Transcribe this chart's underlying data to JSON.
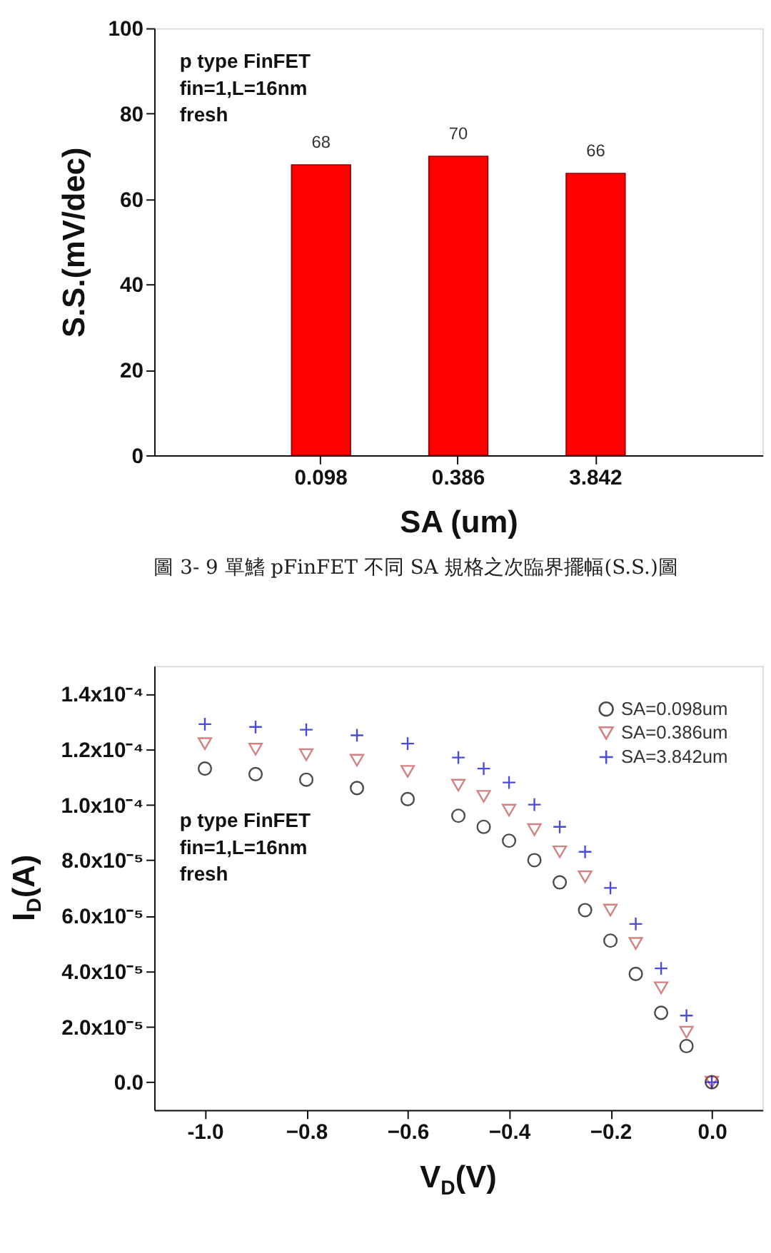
{
  "chart_data": [
    {
      "type": "bar",
      "categories": [
        "0.098",
        "0.386",
        "3.842"
      ],
      "values": [
        68,
        70,
        66
      ],
      "color": "#ff0000",
      "data_labels": true,
      "xlabel": "SA (um)",
      "ylabel": "S.S.(mV/dec)",
      "ylim": [
        0,
        100
      ],
      "yticks": [
        0,
        20,
        40,
        60,
        80,
        100
      ],
      "grid": false,
      "annotations": [
        "p type FinFET",
        "fin=1,L=16nm",
        "fresh",
        "圖 3- 9 單鰭 pFinFET 不同 SA 規格之次臨界擺幅(S.S.)圖"
      ]
    },
    {
      "type": "scatter",
      "xlabel": "V$_{D}$(V)",
      "ylabel": "I$_{D}$(A)",
      "xlim": [
        -1.1,
        0.1
      ],
      "xticks": [
        {
          "value": -1.0,
          "label": "-1.0"
        },
        -0.8,
        -0.6,
        -0.4,
        -0.2,
        {
          "value": 0.0,
          "label": "0.0"
        }
      ],
      "ylim": [
        -1e-05,
        0.00015
      ],
      "yticks": [
        {
          "value": 0,
          "label": "0.0"
        },
        {
          "value": 2e-05,
          "label": "2.0x10⁻⁵"
        },
        {
          "value": 4e-05,
          "label": "4.0x10⁻⁵"
        },
        {
          "value": 6e-05,
          "label": "6.0x10⁻⁵"
        },
        {
          "value": 8e-05,
          "label": "8.0x10⁻⁵"
        },
        {
          "value": 0.0001,
          "label": "1.0x10⁻⁴"
        },
        {
          "value": 0.00012,
          "label": "1.2x10⁻⁴"
        },
        {
          "value": 0.00014,
          "label": "1.4x10⁻⁴"
        }
      ],
      "grid": false,
      "legend": "top right",
      "x": [
        -1.0,
        -0.9,
        -0.8,
        -0.7,
        -0.6,
        -0.5,
        -0.45,
        -0.4,
        -0.35,
        -0.3,
        -0.25,
        -0.2,
        -0.15,
        -0.1,
        -0.05,
        0.0
      ],
      "annotations": [
        "p type FinFET",
        "fin=1,L=16nm",
        "fresh"
      ],
      "series": [
        {
          "name": "SA=0.098um",
          "color": "#000000",
          "marker": "circle",
          "values": [
            0.000113,
            0.000111,
            0.000109,
            0.000106,
            0.000102,
            9.6e-05,
            9.2e-05,
            8.7e-05,
            8e-05,
            7.2e-05,
            6.2e-05,
            5.1e-05,
            3.9e-05,
            2.5e-05,
            1.3e-05,
            0
          ]
        },
        {
          "name": "SA=0.386um",
          "color": "#c0504d",
          "marker": "triangle",
          "values": [
            0.000122,
            0.00012,
            0.000118,
            0.000116,
            0.000112,
            0.000107,
            0.000103,
            9.8e-05,
            9.1e-05,
            8.3e-05,
            7.4e-05,
            6.2e-05,
            5e-05,
            3.4e-05,
            1.8e-05,
            0
          ]
        },
        {
          "name": "SA=3.842um",
          "color": "#0000cc",
          "marker": "cross",
          "values": [
            0.000129,
            0.000128,
            0.000127,
            0.000125,
            0.000122,
            0.000117,
            0.000113,
            0.000108,
            0.0001,
            9.2e-05,
            8.3e-05,
            7e-05,
            5.7e-05,
            4.1e-05,
            2.4e-05,
            0
          ]
        }
      ]
    }
  ]
}
